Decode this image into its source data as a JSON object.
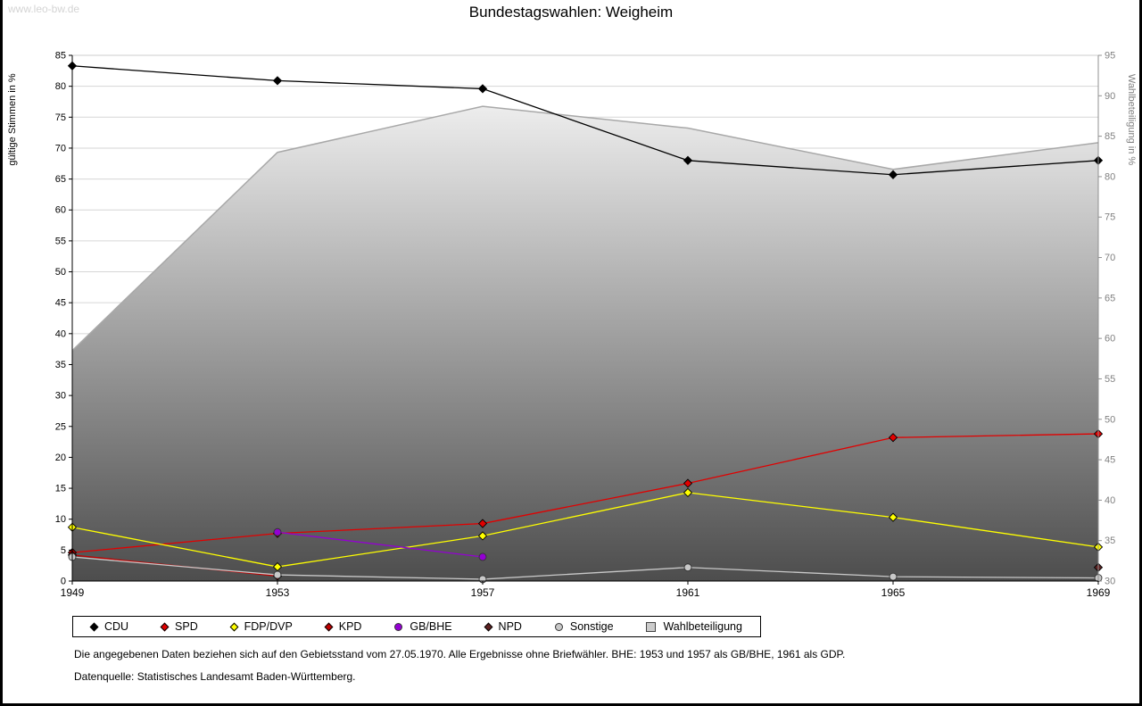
{
  "watermark": "www.leo-bw.de",
  "title": "Bundestagswahlen: Weigheim",
  "notes": {
    "line1": "Die angegebenen Daten beziehen sich auf den Gebietsstand vom 27.05.1970. Alle Ergebnisse ohne Briefwähler. BHE: 1953 und 1957 als GB/BHE, 1961 als GDP.",
    "line2": "Datenquelle: Statistisches Landesamt Baden-Württemberg."
  },
  "chart_data": {
    "type": "line",
    "title": "Bundestagswahlen: Weigheim",
    "x": [
      1949,
      1953,
      1957,
      1961,
      1965,
      1969
    ],
    "x_range": [
      1949,
      1969
    ],
    "grid": true,
    "left_axis": {
      "label": "gültige Stimmen in %",
      "min": 0,
      "max": 85,
      "step": 5
    },
    "right_axis": {
      "label": "Wahlbeteiligung in %",
      "min": 30,
      "max": 95,
      "step": 5
    },
    "colors": {
      "grid": "#d6d6d6",
      "area_outline": "#a8a8a8",
      "area_gradient_top": "#fefefe",
      "area_gradient_bottom": "#4d4d4d",
      "right_axis_text": "#808080"
    },
    "series": [
      {
        "name": "CDU",
        "axis": "left",
        "color": "#000000",
        "marker": "diamond",
        "values": [
          83.3,
          80.9,
          79.6,
          68.0,
          65.7,
          68.0
        ]
      },
      {
        "name": "SPD",
        "axis": "left",
        "color": "#e10000",
        "marker": "diamond",
        "values": [
          4.6,
          7.7,
          9.3,
          15.8,
          23.2,
          23.8
        ]
      },
      {
        "name": "FDP/DVP",
        "axis": "left",
        "color": "#ffff00",
        "marker": "diamond",
        "values": [
          8.7,
          2.3,
          7.3,
          14.3,
          10.3,
          5.5
        ]
      },
      {
        "name": "KPD",
        "axis": "left",
        "color": "#c00000",
        "marker": "diamond",
        "values": [
          4.2,
          0.8,
          null,
          null,
          null,
          null
        ]
      },
      {
        "name": "GB/BHE",
        "axis": "left",
        "color": "#9400d3",
        "marker": "circle",
        "values": [
          null,
          7.9,
          3.9,
          null,
          null,
          null
        ]
      },
      {
        "name": "NPD",
        "axis": "left",
        "color": "#5f2222",
        "marker": "diamond",
        "values": [
          null,
          null,
          null,
          null,
          null,
          2.2
        ]
      },
      {
        "name": "Sonstige",
        "axis": "left",
        "color": "#c8c8c8",
        "marker": "circle",
        "values": [
          3.9,
          1.0,
          0.3,
          2.2,
          0.7,
          0.5
        ]
      },
      {
        "name": "Wahlbeteiligung",
        "axis": "right",
        "type": "area",
        "color": "#cccccc",
        "values": [
          58.5,
          83.0,
          88.7,
          86.0,
          80.9,
          84.2
        ]
      }
    ]
  }
}
